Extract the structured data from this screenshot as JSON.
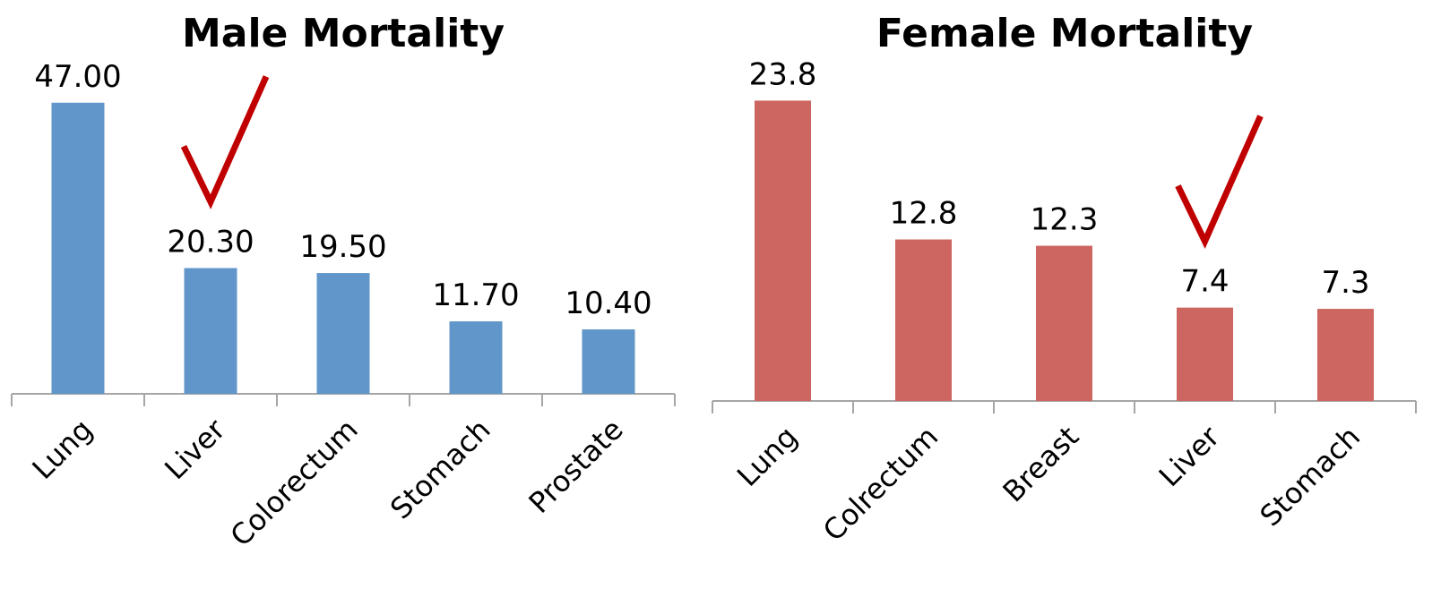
{
  "chart_data": [
    {
      "type": "bar",
      "title": "Male Mortality",
      "categories": [
        "Lung",
        "Liver",
        "Colorectum",
        "Stomach",
        "Prostate"
      ],
      "values": [
        47.0,
        20.3,
        19.5,
        11.7,
        10.4
      ],
      "data_labels": [
        "47.00",
        "20.30",
        "19.50",
        "11.70",
        "10.40"
      ],
      "color": "#6096c9",
      "xlabel": "",
      "ylabel": "",
      "ylim": [
        0,
        50
      ],
      "grid": false,
      "annotations": [
        {
          "type": "checkmark-icon",
          "category": "Liver",
          "color": "#c00000"
        }
      ]
    },
    {
      "type": "bar",
      "title": "Female Mortality",
      "categories": [
        "Lung",
        "Colrectum",
        "Breast",
        "Liver",
        "Stomach"
      ],
      "values": [
        23.8,
        12.8,
        12.3,
        7.4,
        7.3
      ],
      "data_labels": [
        "23.8",
        "12.8",
        "12.3",
        "7.4",
        "7.3"
      ],
      "color": "#cd6660",
      "xlabel": "",
      "ylabel": "",
      "ylim": [
        0,
        25
      ],
      "grid": false,
      "annotations": [
        {
          "type": "checkmark-icon",
          "category": "Liver",
          "color": "#c00000"
        }
      ]
    }
  ]
}
